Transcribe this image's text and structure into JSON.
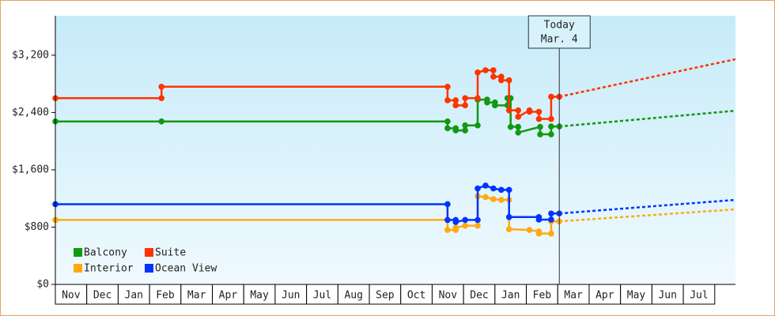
{
  "chart_data": {
    "type": "line",
    "xlim": [
      0,
      21.66
    ],
    "ylim": [
      0,
      3750
    ],
    "xticks": [
      {
        "value": 0.5,
        "label": "Nov"
      },
      {
        "value": 1.5,
        "label": "Dec"
      },
      {
        "value": 2.5,
        "label": "Jan"
      },
      {
        "value": 3.5,
        "label": "Feb"
      },
      {
        "value": 4.5,
        "label": "Mar"
      },
      {
        "value": 5.5,
        "label": "Apr"
      },
      {
        "value": 6.5,
        "label": "May"
      },
      {
        "value": 7.5,
        "label": "Jun"
      },
      {
        "value": 8.5,
        "label": "Jul"
      },
      {
        "value": 9.5,
        "label": "Aug"
      },
      {
        "value": 10.5,
        "label": "Sep"
      },
      {
        "value": 11.5,
        "label": "Oct"
      },
      {
        "value": 12.5,
        "label": "Nov"
      },
      {
        "value": 13.5,
        "label": "Dec"
      },
      {
        "value": 14.5,
        "label": "Jan"
      },
      {
        "value": 15.5,
        "label": "Feb"
      },
      {
        "value": 16.5,
        "label": "Mar"
      },
      {
        "value": 17.5,
        "label": "Apr"
      },
      {
        "value": 18.5,
        "label": "May"
      },
      {
        "value": 19.5,
        "label": "Jun"
      },
      {
        "value": 20.5,
        "label": "Jul"
      }
    ],
    "yticks": [
      {
        "value": 0,
        "label": "$0"
      },
      {
        "value": 800,
        "label": "$800"
      },
      {
        "value": 1600,
        "label": "$1,600"
      },
      {
        "value": 2400,
        "label": "$2,400"
      },
      {
        "value": 3200,
        "label": "$3,200"
      }
    ],
    "annotation": {
      "x": 16.05,
      "lines": [
        "Today",
        "Mar. 4"
      ]
    },
    "series": [
      {
        "name": "Balcony",
        "color": "#119911",
        "x": [
          0,
          3.38,
          12.49,
          12.49,
          12.75,
          12.75,
          13.05,
          13.05,
          13.45,
          13.45,
          13.75,
          13.75,
          14.0,
          14.0,
          14.4,
          14.4,
          14.5,
          14.5,
          14.74,
          14.74,
          15.44,
          15.44,
          15.79,
          15.79,
          16.05
        ],
        "values": [
          2275,
          2275,
          2275,
          2180,
          2180,
          2150,
          2150,
          2220,
          2220,
          2580,
          2580,
          2540,
          2540,
          2500,
          2500,
          2600,
          2600,
          2200,
          2200,
          2120,
          2200,
          2095,
          2095,
          2205,
          2205
        ],
        "projection": {
          "x": [
            16.05,
            21.66
          ],
          "values": [
            2205,
            2425
          ]
        }
      },
      {
        "name": "Suite",
        "color": "#ff3300",
        "x": [
          0,
          3.38,
          3.38,
          12.49,
          12.49,
          12.75,
          12.75,
          13.05,
          13.05,
          13.45,
          13.45,
          13.7,
          13.95,
          13.95,
          14.2,
          14.2,
          14.45,
          14.45,
          14.74,
          14.74,
          15.1,
          15.1,
          15.4,
          15.4,
          15.79,
          15.79,
          16.05
        ],
        "values": [
          2600,
          2600,
          2760,
          2760,
          2570,
          2570,
          2500,
          2500,
          2600,
          2600,
          2960,
          2990,
          2990,
          2900,
          2900,
          2850,
          2850,
          2430,
          2430,
          2340,
          2430,
          2410,
          2410,
          2310,
          2310,
          2620,
          2620
        ],
        "projection": {
          "x": [
            16.05,
            21.66
          ],
          "values": [
            2620,
            3144
          ]
        }
      },
      {
        "name": "Interior",
        "color": "#ffaa11",
        "x": [
          0,
          12.49,
          12.49,
          12.75,
          12.75,
          13.05,
          13.45,
          13.45,
          13.7,
          13.95,
          14.2,
          14.45,
          14.45,
          15.1,
          15.4,
          15.4,
          15.79,
          15.79,
          16.05
        ],
        "values": [
          900,
          900,
          760,
          760,
          790,
          820,
          820,
          1230,
          1220,
          1190,
          1180,
          1180,
          770,
          760,
          740,
          710,
          710,
          880,
          880
        ],
        "projection": {
          "x": [
            16.05,
            21.66
          ],
          "values": [
            880,
            1048
          ]
        }
      },
      {
        "name": "Ocean View",
        "color": "#0033ff",
        "x": [
          0,
          12.49,
          12.49,
          12.75,
          12.75,
          13.05,
          13.45,
          13.45,
          13.7,
          13.95,
          14.2,
          14.45,
          14.45,
          15.4,
          15.4,
          15.79,
          15.79,
          16.05
        ],
        "values": [
          1120,
          1120,
          900,
          900,
          870,
          900,
          900,
          1340,
          1380,
          1340,
          1320,
          1320,
          940,
          940,
          905,
          905,
          990,
          990
        ],
        "projection": {
          "x": [
            16.05,
            21.66
          ],
          "values": [
            990,
            1180
          ]
        }
      }
    ]
  }
}
